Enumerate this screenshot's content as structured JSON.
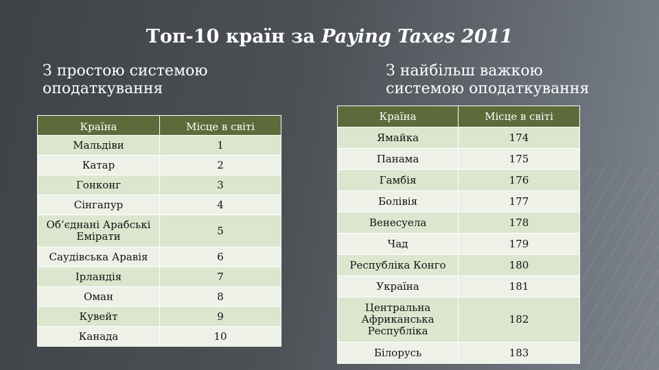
{
  "slide": {
    "title_prefix": "Топ-10 країн за ",
    "title_italic": "Paying Taxes 2011",
    "left_heading": "З простою системою оподаткування",
    "right_heading": "З найбільш важкою системою оподаткування"
  },
  "left_table": {
    "headers": [
      "Країна",
      "Місце в світі"
    ],
    "rows": [
      [
        "Мальдіви",
        "1"
      ],
      [
        "Катар",
        "2"
      ],
      [
        "Гонконг",
        "3"
      ],
      [
        "Сінгапур",
        "4"
      ],
      [
        "Об’єднані Арабські Емірати",
        "5"
      ],
      [
        "Саудівська Аравія",
        "6"
      ],
      [
        "Ірландія",
        "7"
      ],
      [
        "Оман",
        "8"
      ],
      [
        "Кувейт",
        "9"
      ],
      [
        "Канада",
        "10"
      ]
    ]
  },
  "right_table": {
    "headers": [
      "Країна",
      "Місце в світі"
    ],
    "rows": [
      [
        "Ямайка",
        "174"
      ],
      [
        "Панама",
        "175"
      ],
      [
        "Гамбія",
        "176"
      ],
      [
        "Болівія",
        "177"
      ],
      [
        "Венесуела",
        "178"
      ],
      [
        "Чад",
        "179"
      ],
      [
        "Республіка Конго",
        "180"
      ],
      [
        "Україна",
        "181"
      ],
      [
        "Центральна Африканська Республіка",
        "182"
      ],
      [
        "Білорусь",
        "183"
      ]
    ]
  },
  "colors": {
    "header_bg": "#5d6b3b",
    "row_odd": "#dde5cf",
    "row_even": "#edf1e7"
  }
}
